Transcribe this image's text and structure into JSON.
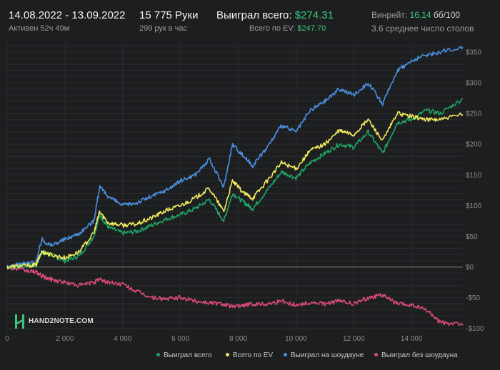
{
  "header": {
    "date_range": "14.08.2022 - 13.09.2022",
    "active_time": "Активен 52ч 49м",
    "hands": "15 775 Руки",
    "hands_per_hour": "299 рук в час",
    "won_total_label": "Выиграл всего:",
    "won_total_value": "$274.31",
    "ev_label": "Всего по EV:",
    "ev_value": "$247.70",
    "winrate_label": "Винрейт:",
    "winrate_value": "16.14",
    "winrate_unit": "бб/100",
    "avg_tables": "3.6 среднее число столов"
  },
  "logo": {
    "text": "HAND2NOTE.COM"
  },
  "colors": {
    "background": "#1d1e20",
    "won_total": "#1fa463",
    "ev": "#f0ea5a",
    "showdown": "#4a8fe0",
    "non_showdown": "#d84a78"
  },
  "chart_data": {
    "type": "line",
    "title": "",
    "xlabel": "",
    "ylabel": "",
    "xlim": [
      0,
      15775
    ],
    "ylim": [
      -105,
      365
    ],
    "x_ticks": [
      0,
      2000,
      4000,
      6000,
      8000,
      10000,
      12000,
      14000
    ],
    "x_tick_labels": [
      "0",
      "2 000",
      "4 000",
      "6 000",
      "8 000",
      "10 000",
      "12 000",
      "14 000"
    ],
    "y_ticks": [
      350,
      300,
      250,
      200,
      150,
      100,
      50,
      0,
      -50,
      -100
    ],
    "y_tick_labels": [
      "$350",
      "$300",
      "$250",
      "$200",
      "$150",
      "$100",
      "$50",
      "$0",
      "-$50",
      "-$100"
    ],
    "x": [
      0,
      500,
      1000,
      1200,
      1500,
      2000,
      2500,
      3000,
      3200,
      3500,
      4000,
      4500,
      5000,
      5500,
      6000,
      6500,
      7000,
      7500,
      7800,
      8200,
      8500,
      9000,
      9500,
      10000,
      10500,
      11000,
      11500,
      12000,
      12500,
      13000,
      13500,
      14000,
      14500,
      15000,
      15775
    ],
    "series": [
      {
        "name": "Выиграл всего",
        "color_key": "won_total",
        "values": [
          0,
          2,
          3,
          25,
          20,
          10,
          18,
          50,
          85,
          65,
          55,
          58,
          68,
          78,
          85,
          95,
          110,
          75,
          120,
          105,
          95,
          125,
          155,
          145,
          170,
          185,
          200,
          195,
          220,
          185,
          235,
          240,
          255,
          250,
          274
        ]
      },
      {
        "name": "Всего по EV",
        "color_key": "ev",
        "values": [
          0,
          2,
          3,
          25,
          20,
          15,
          25,
          55,
          90,
          72,
          68,
          70,
          80,
          92,
          100,
          112,
          128,
          90,
          140,
          120,
          112,
          140,
          170,
          160,
          190,
          200,
          222,
          215,
          240,
          205,
          250,
          245,
          240,
          240,
          248
        ]
      },
      {
        "name": "Выиграл на шоудауне",
        "color_key": "showdown",
        "values": [
          0,
          5,
          8,
          45,
          35,
          45,
          55,
          75,
          130,
          115,
          100,
          105,
          115,
          125,
          140,
          150,
          175,
          130,
          200,
          180,
          165,
          195,
          230,
          220,
          255,
          270,
          290,
          280,
          300,
          265,
          320,
          335,
          345,
          350,
          358
        ]
      },
      {
        "name": "Выиграл без шоудауна",
        "color_key": "non_showdown",
        "values": [
          0,
          -5,
          -8,
          -15,
          -20,
          -25,
          -30,
          -25,
          -20,
          -25,
          -28,
          -40,
          -50,
          -52,
          -50,
          -55,
          -58,
          -60,
          -65,
          -62,
          -60,
          -60,
          -55,
          -62,
          -58,
          -60,
          -55,
          -60,
          -50,
          -45,
          -60,
          -62,
          -70,
          -90,
          -95
        ]
      }
    ]
  },
  "legend": {
    "items": [
      {
        "label": "Выиграл всего",
        "color_key": "won_total"
      },
      {
        "label": "Всего по EV",
        "color_key": "ev"
      },
      {
        "label": "Выиграл на шоудауне",
        "color_key": "showdown"
      },
      {
        "label": "Выиграл без шоудауна",
        "color_key": "non_showdown"
      }
    ]
  }
}
